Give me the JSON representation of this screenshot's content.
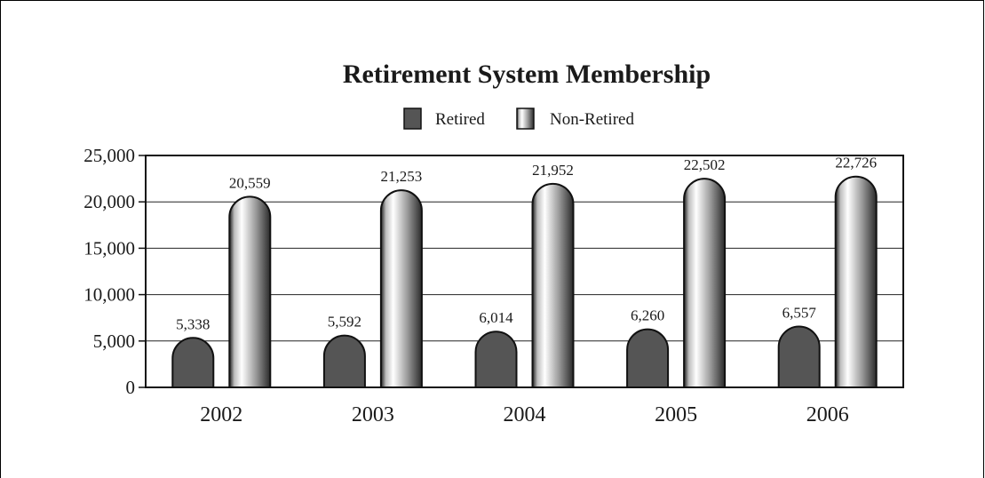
{
  "chart_data": {
    "type": "bar",
    "title": "Retirement System Membership",
    "categories": [
      "2002",
      "2003",
      "2004",
      "2005",
      "2006"
    ],
    "series": [
      {
        "name": "Retired",
        "values": [
          5338,
          5592,
          6014,
          6260,
          6557
        ],
        "labels": [
          "5,338",
          "5,592",
          "6,014",
          "6,260",
          "6,557"
        ]
      },
      {
        "name": "Non-Retired",
        "values": [
          20559,
          21253,
          21952,
          22502,
          22726
        ],
        "labels": [
          "20,559",
          "21,253",
          "21,952",
          "22,502",
          "22,726"
        ]
      }
    ],
    "ylim": [
      0,
      25000
    ],
    "yticks": [
      0,
      5000,
      10000,
      15000,
      20000,
      25000
    ],
    "ytick_labels": [
      "0",
      "5,000",
      "10,000",
      "15,000",
      "20,000",
      "25,000"
    ],
    "grid": true,
    "legend": "top-center",
    "colors": {
      "retired": "#555555",
      "non_retired_light": "#ffffff",
      "non_retired_dark": "#3a3a3a"
    }
  }
}
